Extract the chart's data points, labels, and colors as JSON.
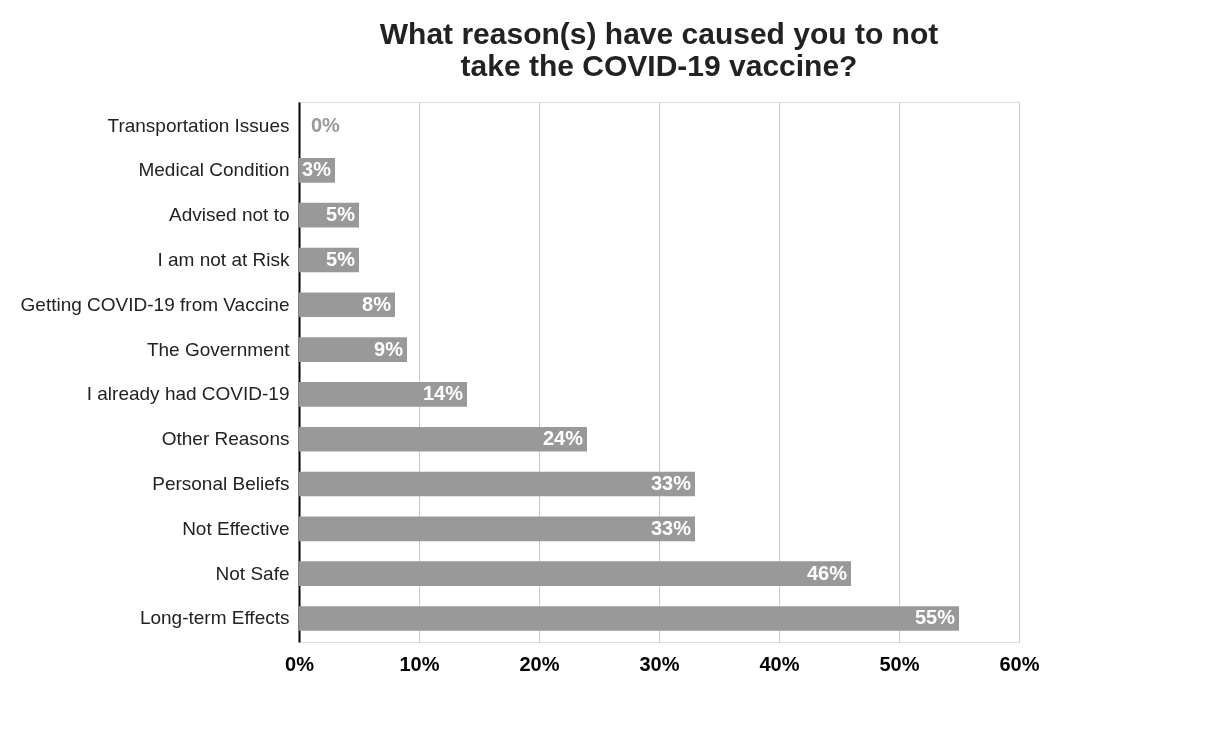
{
  "chart_data": {
    "type": "bar",
    "orientation": "horizontal",
    "title": "What reason(s) have caused you to not take the COVID-19 vaccine?",
    "categories": [
      "Transportation Issues",
      "Medical Condition",
      "Advised not to",
      "I am not at Risk",
      "Getting COVID-19 from Vaccine",
      "The Government",
      "I already had COVID-19",
      "Other Reasons",
      "Personal Beliefs",
      "Not Effective",
      "Not Safe",
      "Long-term Effects"
    ],
    "values": [
      0,
      3,
      5,
      5,
      8,
      9,
      14,
      24,
      33,
      33,
      46,
      55
    ],
    "value_labels": [
      "0%",
      "3%",
      "5%",
      "5%",
      "8%",
      "9%",
      "14%",
      "24%",
      "33%",
      "33%",
      "46%",
      "55%"
    ],
    "color": "#999999",
    "xlim": [
      0,
      60
    ],
    "xticks": [
      {
        "value": 0,
        "label": "0%"
      },
      {
        "value": 10,
        "label": "10%"
      },
      {
        "value": 20,
        "label": "20%"
      },
      {
        "value": 30,
        "label": "30%"
      },
      {
        "value": 40,
        "label": "40%"
      },
      {
        "value": 50,
        "label": "50%"
      },
      {
        "value": 60,
        "label": "60%"
      }
    ],
    "grid": "x"
  }
}
